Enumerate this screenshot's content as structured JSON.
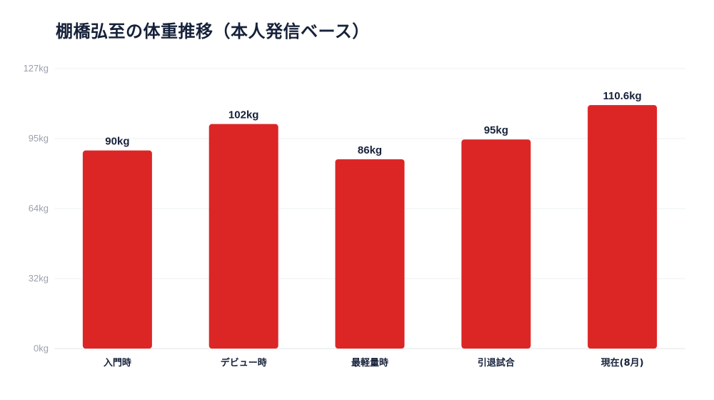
{
  "chart_data": {
    "type": "bar",
    "title": "棚橋弘至の体重推移（本人発信ベース）",
    "categories": [
      "入門時",
      "デビュー時",
      "最軽量時",
      "引退試合",
      "現在(8月)"
    ],
    "values": [
      90,
      102,
      86,
      95,
      110.6
    ],
    "data_labels": [
      "90kg",
      "102kg",
      "86kg",
      "95kg",
      "110.6kg"
    ],
    "yticks": [
      "0kg",
      "32kg",
      "64kg",
      "95kg",
      "127kg"
    ],
    "ylim": [
      0,
      127.2
    ],
    "xlabel": "",
    "ylabel": "",
    "grid": true,
    "bar_color": "#dc2626"
  }
}
